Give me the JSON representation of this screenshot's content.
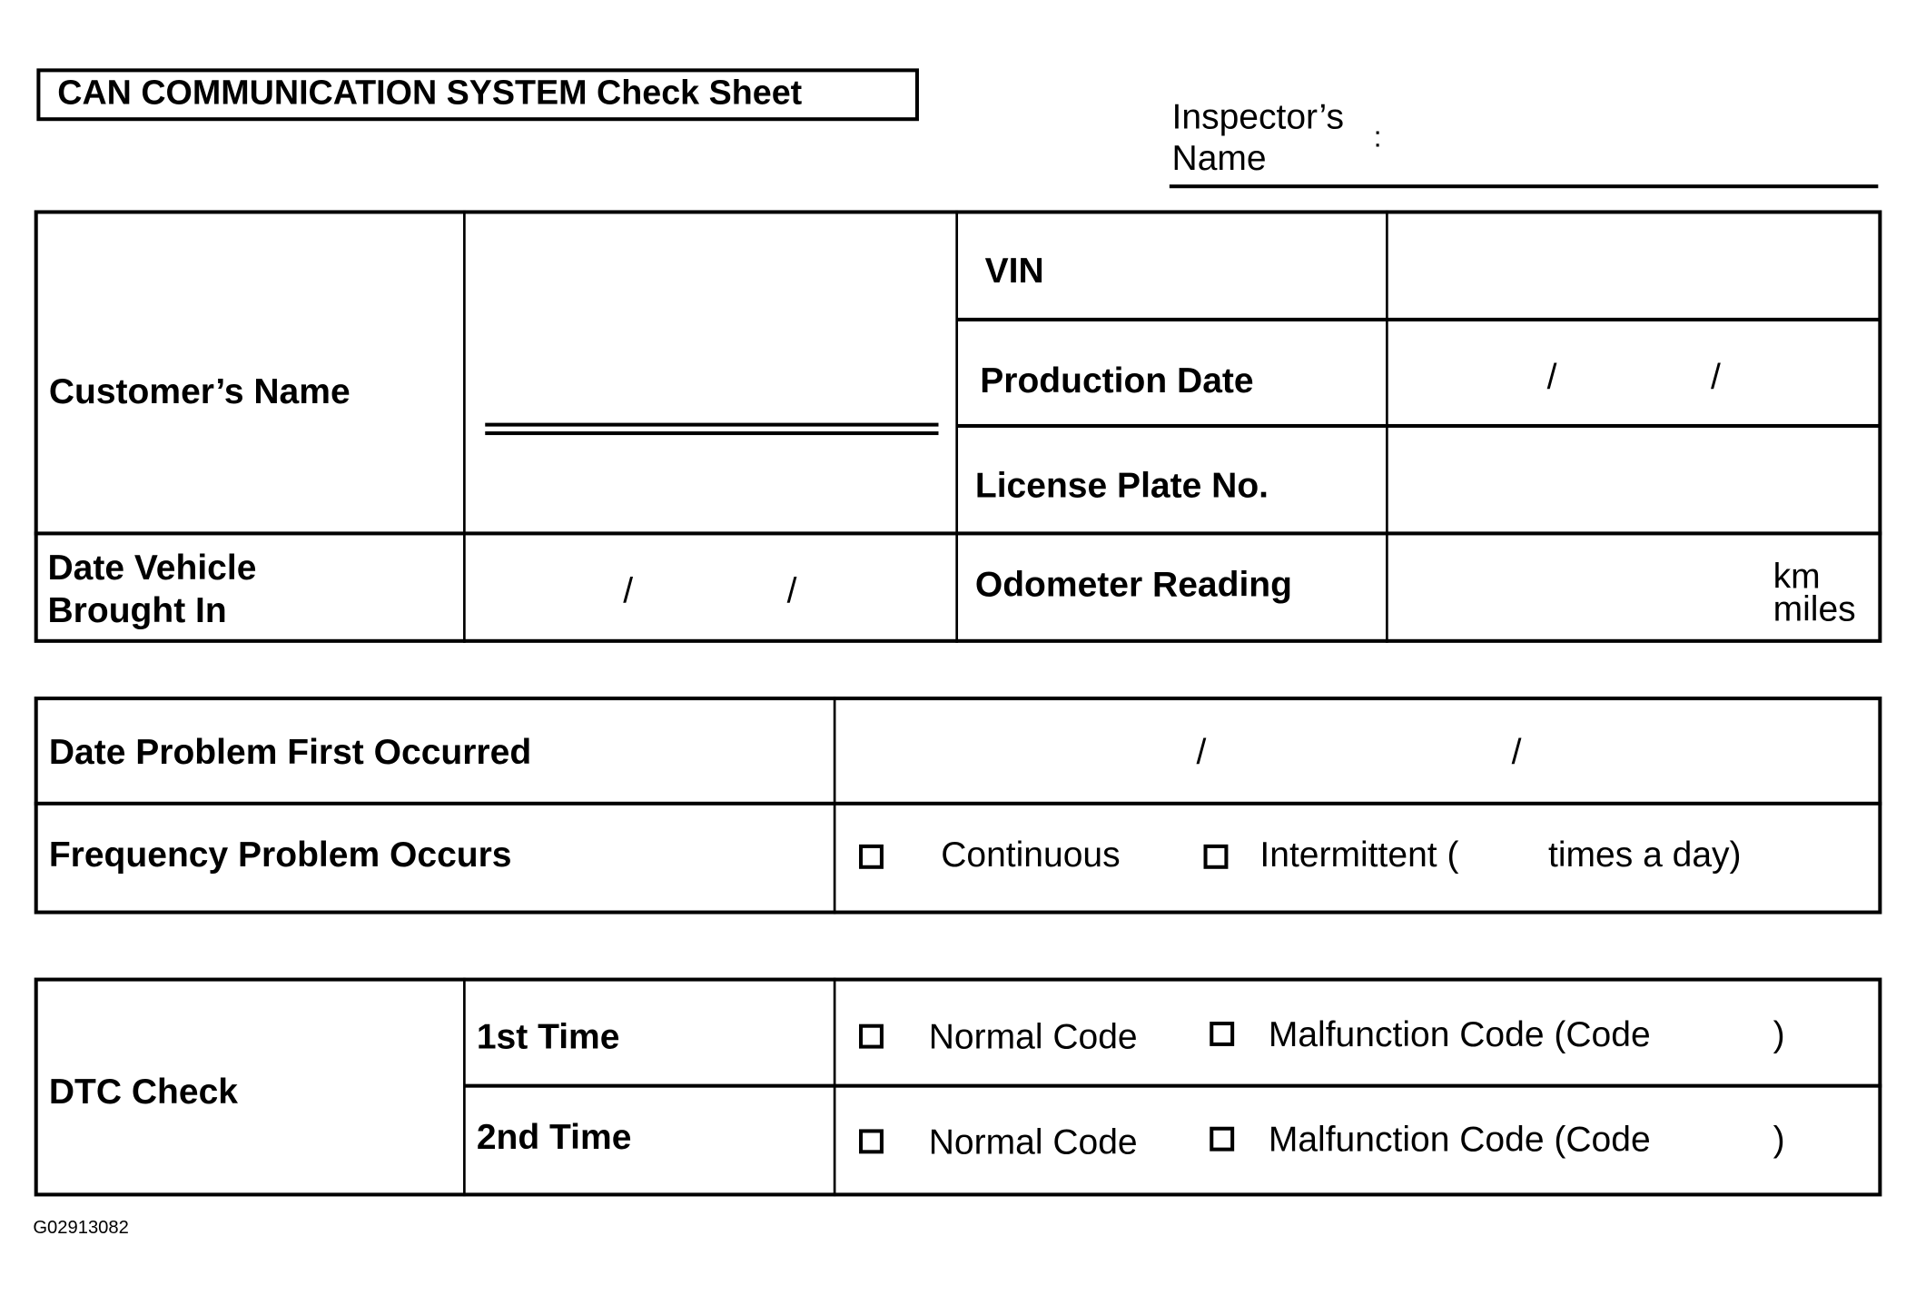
{
  "title": "CAN COMMUNICATION SYSTEM Check Sheet",
  "inspector": {
    "label_line1": "Inspector’s",
    "label_line2": "Name",
    "colon": ":"
  },
  "vehicle_table": {
    "customer_name": "Customer’s Name",
    "vin": "VIN",
    "production_date": "Production Date",
    "license_plate": "License Plate No.",
    "date_brought_in_line1": "Date Vehicle",
    "date_brought_in_line2": "Brought In",
    "odometer": "Odometer Reading",
    "unit_km": "km",
    "unit_miles": "miles",
    "date_separator": "/"
  },
  "problem_table": {
    "date_first": "Date Problem First Occurred",
    "frequency": "Frequency Problem Occurs",
    "continuous": "Continuous",
    "intermittent": "Intermittent (",
    "times_a_day": "times a day)"
  },
  "dtc_table": {
    "label": "DTC Check",
    "first": "1st Time",
    "second": "2nd Time",
    "normal": "Normal Code",
    "malfunction": "Malfunction Code (Code",
    "close_paren": ")"
  },
  "figure_id": "G02913082"
}
